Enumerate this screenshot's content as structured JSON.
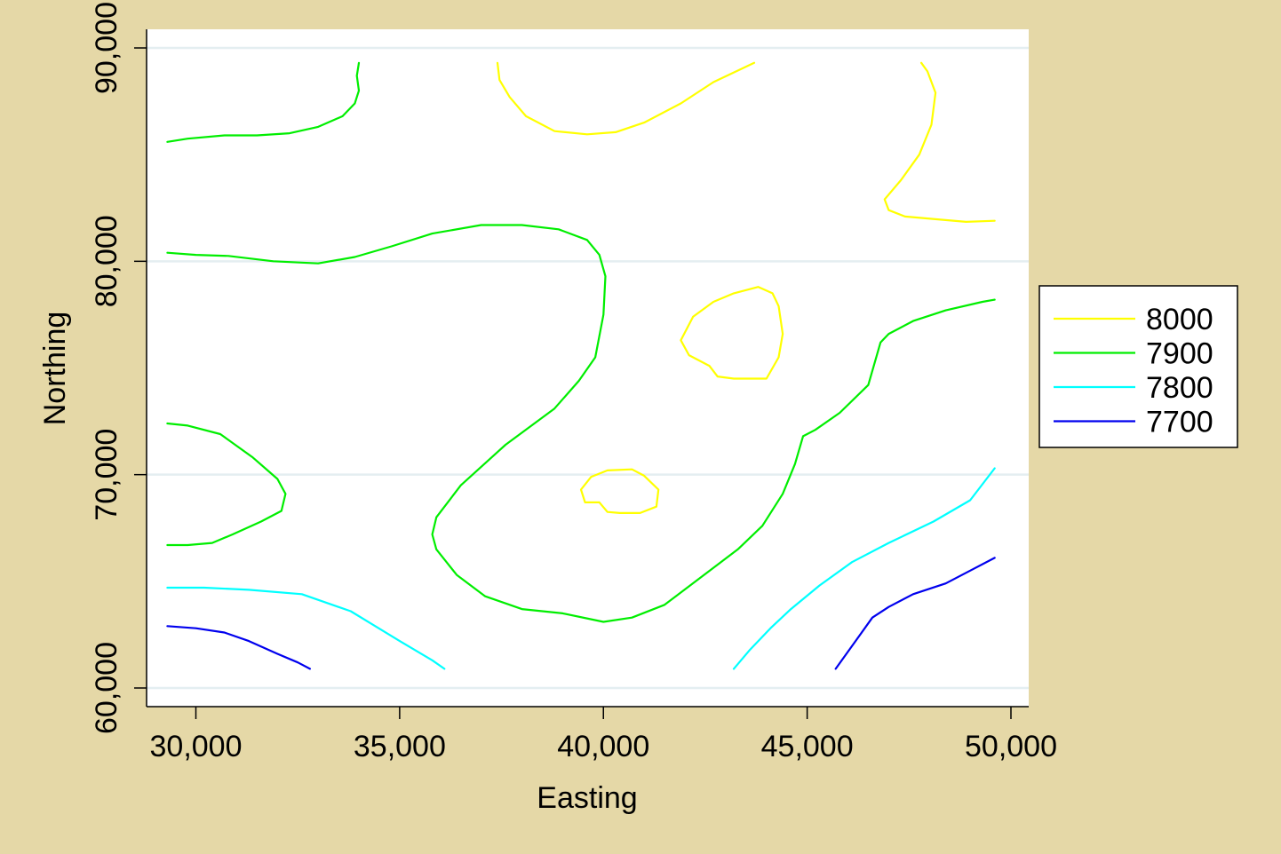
{
  "chart_data": {
    "type": "contour",
    "title": "",
    "xlabel": "Easting",
    "ylabel": "Northing",
    "xlim": [
      28800,
      50400
    ],
    "ylim": [
      59200,
      91000
    ],
    "x_ticks": [
      30000,
      35000,
      40000,
      45000,
      50000
    ],
    "x_tick_labels": [
      "30,000",
      "35,000",
      "40,000",
      "45,000",
      "50,000"
    ],
    "y_ticks": [
      60000,
      70000,
      80000,
      90000
    ],
    "y_tick_labels": [
      "60,000",
      "70,000",
      "80,000",
      "90,000"
    ],
    "grid": true,
    "legend_position": "right",
    "colors": {
      "page_background": "#e5d8a7",
      "plot_background": "#ffffff",
      "gridline": "#e4eef1"
    },
    "legend": [
      {
        "label": "8000",
        "level": 8000,
        "color": "#ffff00"
      },
      {
        "label": "7900",
        "level": 7900,
        "color": "#00ee00"
      },
      {
        "label": "7800",
        "level": 7800,
        "color": "#00ffff"
      },
      {
        "label": "7700",
        "level": 7700,
        "color": "#0000ee"
      }
    ],
    "contours": [
      {
        "level": 8000,
        "color": "#ffff00",
        "points": [
          [
            37400,
            89300
          ],
          [
            37450,
            88500
          ],
          [
            37700,
            87700
          ],
          [
            38100,
            86800
          ],
          [
            38800,
            86100
          ],
          [
            39600,
            85950
          ],
          [
            40300,
            86050
          ],
          [
            41000,
            86500
          ],
          [
            41900,
            87400
          ],
          [
            42700,
            88400
          ],
          [
            43700,
            89300
          ]
        ]
      },
      {
        "level": 8000,
        "color": "#ffff00",
        "points": [
          [
            47800,
            89300
          ],
          [
            47950,
            88900
          ],
          [
            48150,
            87900
          ],
          [
            48050,
            86400
          ],
          [
            47750,
            85000
          ],
          [
            47300,
            83800
          ],
          [
            46900,
            82900
          ],
          [
            47000,
            82400
          ],
          [
            47400,
            82100
          ],
          [
            48300,
            81950
          ],
          [
            48900,
            81850
          ],
          [
            49600,
            81900
          ]
        ]
      },
      {
        "level": 8000,
        "color": "#ffff00",
        "points": [
          [
            42600,
            75100
          ],
          [
            42800,
            74600
          ],
          [
            43200,
            74500
          ],
          [
            44000,
            74500
          ],
          [
            44300,
            75500
          ],
          [
            44400,
            76600
          ],
          [
            44300,
            77900
          ],
          [
            44150,
            78500
          ],
          [
            43800,
            78800
          ],
          [
            43200,
            78500
          ],
          [
            42700,
            78100
          ],
          [
            42200,
            77400
          ],
          [
            41900,
            76300
          ],
          [
            42100,
            75600
          ],
          [
            42600,
            75100
          ]
        ]
      },
      {
        "level": 8000,
        "color": "#ffff00",
        "points": [
          [
            39900,
            68700
          ],
          [
            40100,
            68250
          ],
          [
            40400,
            68200
          ],
          [
            40900,
            68200
          ],
          [
            41300,
            68500
          ],
          [
            41350,
            69300
          ],
          [
            41000,
            69950
          ],
          [
            40700,
            70250
          ],
          [
            40100,
            70200
          ],
          [
            39700,
            69900
          ],
          [
            39450,
            69300
          ],
          [
            39550,
            68700
          ],
          [
            39900,
            68700
          ]
        ]
      },
      {
        "level": 7900,
        "color": "#00ee00",
        "points": [
          [
            29300,
            85600
          ],
          [
            29800,
            85750
          ],
          [
            30700,
            85900
          ],
          [
            31500,
            85900
          ],
          [
            32300,
            86000
          ],
          [
            33000,
            86300
          ],
          [
            33600,
            86800
          ],
          [
            33900,
            87400
          ],
          [
            34000,
            88000
          ],
          [
            33950,
            88700
          ],
          [
            34000,
            89300
          ]
        ]
      },
      {
        "level": 7900,
        "color": "#00ee00",
        "points": [
          [
            29300,
            80400
          ],
          [
            30000,
            80300
          ],
          [
            30800,
            80250
          ],
          [
            31900,
            80000
          ],
          [
            33000,
            79900
          ],
          [
            33900,
            80200
          ],
          [
            34800,
            80700
          ],
          [
            35800,
            81300
          ],
          [
            37000,
            81700
          ],
          [
            38000,
            81700
          ],
          [
            38900,
            81500
          ],
          [
            39600,
            81000
          ],
          [
            39900,
            80300
          ],
          [
            40050,
            79300
          ],
          [
            40000,
            77500
          ],
          [
            39800,
            75500
          ],
          [
            39400,
            74400
          ],
          [
            38800,
            73100
          ],
          [
            37600,
            71400
          ],
          [
            36500,
            69500
          ],
          [
            35900,
            68000
          ],
          [
            35800,
            67200
          ],
          [
            35900,
            66500
          ],
          [
            36400,
            65300
          ],
          [
            37100,
            64300
          ],
          [
            38000,
            63700
          ],
          [
            39000,
            63500
          ],
          [
            40000,
            63100
          ],
          [
            40700,
            63300
          ],
          [
            41500,
            63900
          ],
          [
            42400,
            65200
          ],
          [
            43300,
            66500
          ],
          [
            43900,
            67600
          ],
          [
            44400,
            69100
          ],
          [
            44700,
            70500
          ],
          [
            44900,
            71800
          ],
          [
            45200,
            72100
          ],
          [
            45800,
            72900
          ],
          [
            46500,
            74200
          ],
          [
            46800,
            76200
          ],
          [
            47000,
            76600
          ],
          [
            47600,
            77200
          ],
          [
            48400,
            77700
          ],
          [
            49300,
            78100
          ],
          [
            49600,
            78200
          ]
        ]
      },
      {
        "level": 7900,
        "color": "#00ee00",
        "points": [
          [
            29300,
            72400
          ],
          [
            29800,
            72300
          ],
          [
            30600,
            71900
          ],
          [
            31400,
            70800
          ],
          [
            32000,
            69800
          ],
          [
            32200,
            69100
          ],
          [
            32100,
            68300
          ],
          [
            31600,
            67800
          ],
          [
            30900,
            67200
          ],
          [
            30400,
            66800
          ],
          [
            29800,
            66700
          ],
          [
            29300,
            66700
          ]
        ]
      },
      {
        "level": 7800,
        "color": "#00ffff",
        "points": [
          [
            29300,
            64700
          ],
          [
            30200,
            64700
          ],
          [
            31300,
            64600
          ],
          [
            32600,
            64400
          ],
          [
            33800,
            63600
          ],
          [
            34400,
            62900
          ],
          [
            35000,
            62200
          ],
          [
            35800,
            61300
          ],
          [
            36100,
            60900
          ]
        ]
      },
      {
        "level": 7800,
        "color": "#00ffff",
        "points": [
          [
            43200,
            60900
          ],
          [
            43600,
            61800
          ],
          [
            44100,
            62800
          ],
          [
            44600,
            63700
          ],
          [
            45300,
            64800
          ],
          [
            46100,
            65900
          ],
          [
            47000,
            66800
          ],
          [
            48100,
            67800
          ],
          [
            49000,
            68800
          ],
          [
            49600,
            70300
          ]
        ]
      },
      {
        "level": 7700,
        "color": "#0000ee",
        "points": [
          [
            29300,
            62900
          ],
          [
            30000,
            62800
          ],
          [
            30700,
            62600
          ],
          [
            31300,
            62200
          ],
          [
            32000,
            61600
          ],
          [
            32500,
            61200
          ],
          [
            32800,
            60900
          ]
        ]
      },
      {
        "level": 7700,
        "color": "#0000ee",
        "points": [
          [
            45700,
            60900
          ],
          [
            46000,
            61700
          ],
          [
            46300,
            62500
          ],
          [
            46600,
            63300
          ],
          [
            47000,
            63800
          ],
          [
            47600,
            64400
          ],
          [
            48400,
            64900
          ],
          [
            49000,
            65500
          ],
          [
            49600,
            66100
          ]
        ]
      }
    ]
  }
}
